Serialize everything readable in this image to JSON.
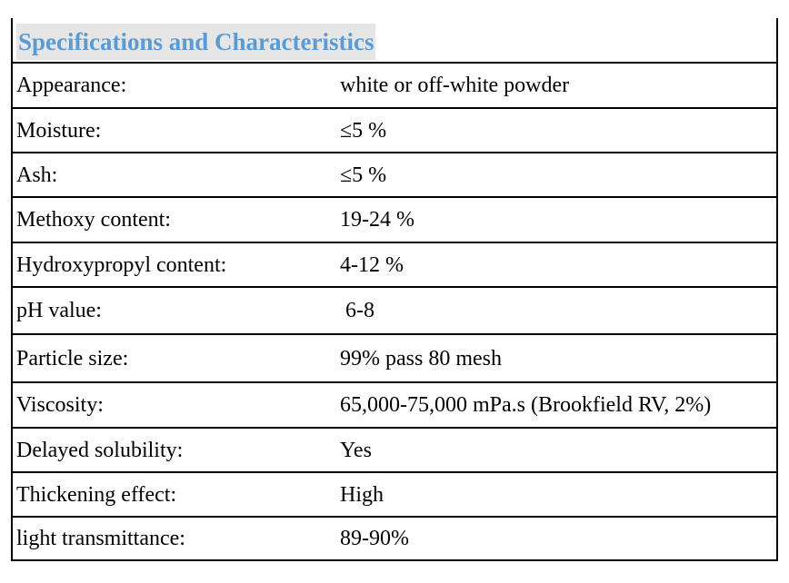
{
  "title": "Specifications and Characteristics",
  "rows": [
    {
      "label": "Appearance:",
      "value": "white or off-white powder"
    },
    {
      "label": "Moisture:",
      "value": "≤5 %"
    },
    {
      "label": "Ash:",
      "value": "≤5 %"
    },
    {
      "label": "Methoxy content:",
      "value": "19-24 %"
    },
    {
      "label": "Hydroxypropyl content:",
      "value": "4-12 %"
    },
    {
      "label": "pH value:",
      "value": " 6-8"
    },
    {
      "label": "Particle size:",
      "value": "99% pass 80 mesh"
    },
    {
      "label": "Viscosity:",
      "value": "65,000-75,000 mPa.s (Brookfield RV, 2%)"
    },
    {
      "label": "Delayed solubility:",
      "value": "Yes"
    },
    {
      "label": "Thickening effect:",
      "value": "High"
    },
    {
      "label": "light transmittance:",
      "value": "89-90%"
    }
  ]
}
